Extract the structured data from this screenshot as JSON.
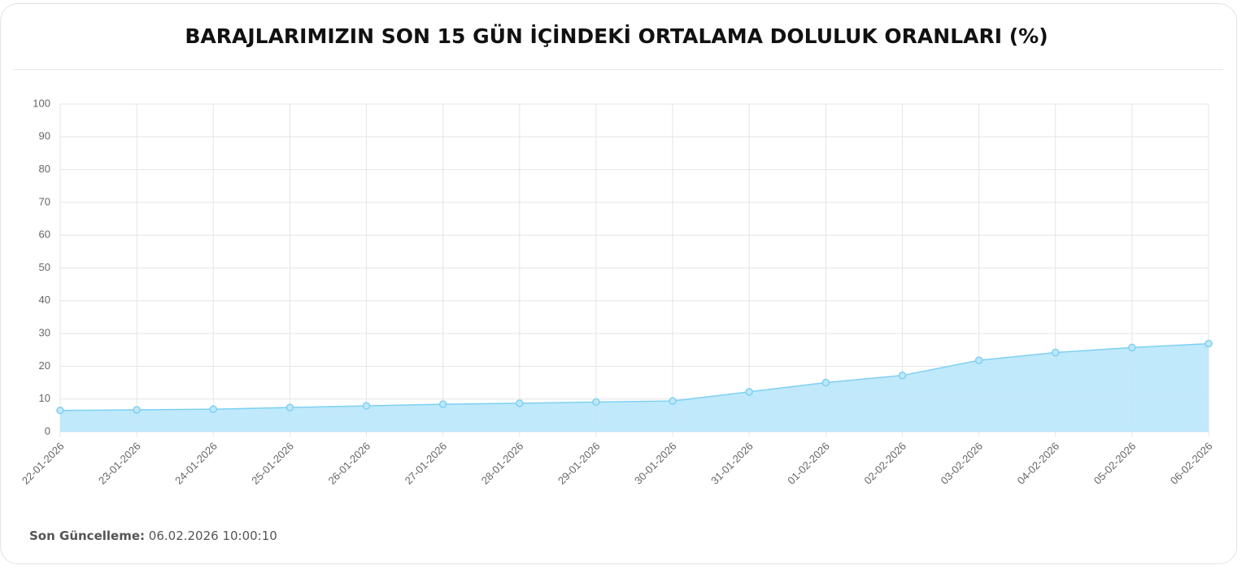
{
  "chart_data": {
    "type": "area",
    "title": "BARAJLARIMIZIN SON 15 GÜN İÇİNDEKİ ORTALAMA DOLULUK ORANLARI (%)",
    "categories": [
      "22-01-2026",
      "23-01-2026",
      "24-01-2026",
      "25-01-2026",
      "26-01-2026",
      "27-01-2026",
      "28-01-2026",
      "29-01-2026",
      "30-01-2026",
      "31-01-2026",
      "01-02-2026",
      "02-02-2026",
      "03-02-2026",
      "04-02-2026",
      "05-02-2026",
      "06-02-2026"
    ],
    "values": [
      6.5,
      6.7,
      6.9,
      7.4,
      7.9,
      8.4,
      8.7,
      9.1,
      9.4,
      12.2,
      15.0,
      17.2,
      21.8,
      24.2,
      25.7,
      26.9
    ],
    "color": "#7fd0f2",
    "fill": "#bde8fb",
    "ylim": [
      0,
      100
    ],
    "yticks": [
      0,
      10,
      20,
      30,
      40,
      50,
      60,
      70,
      80,
      90,
      100
    ],
    "grid": true
  },
  "footer": {
    "label": "Son Güncelleme:",
    "value": "06.02.2026 10:00:10"
  }
}
